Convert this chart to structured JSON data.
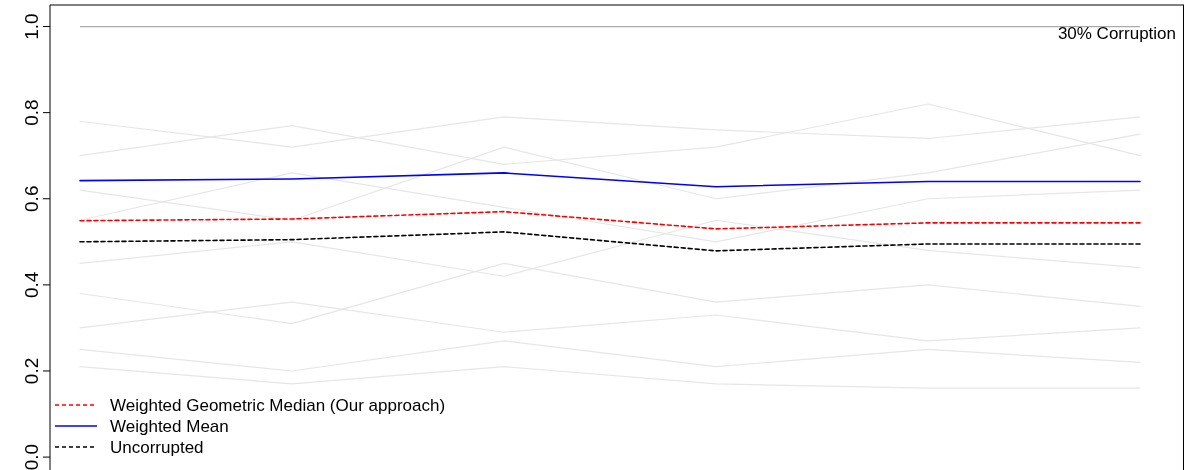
{
  "chart_data": {
    "type": "line",
    "categories": [
      null,
      null,
      null,
      null,
      null,
      null
    ],
    "ylim": [
      -0.03,
      1.05
    ],
    "yticks": [
      {
        "value": 0,
        "label": "0.0"
      },
      0.2,
      0.4,
      0.6,
      0.8,
      {
        "value": 1,
        "label": "1.0"
      }
    ],
    "tick_labels": "y",
    "grid": false,
    "legend": "bottom left",
    "annotations": [
      "30% Corruption"
    ],
    "ref_lines": [
      {
        "axis": "y",
        "value": 1,
        "color": "#aaaaaa"
      }
    ],
    "series": [
      {
        "color": "#e6e6e6",
        "values": [
          0.78,
          0.72,
          0.79,
          0.76,
          0.74,
          0.79
        ]
      },
      {
        "color": "#e6e6e6",
        "values": [
          0.7,
          0.77,
          0.68,
          0.72,
          0.82,
          0.7
        ]
      },
      {
        "color": "#e6e6e6",
        "values": [
          0.62,
          0.55,
          0.72,
          0.6,
          0.66,
          0.75
        ]
      },
      {
        "color": "#e6e6e6",
        "values": [
          0.55,
          0.66,
          0.58,
          0.5,
          0.6,
          0.62
        ]
      },
      {
        "color": "#e6e6e6",
        "values": [
          0.45,
          0.5,
          0.42,
          0.55,
          0.48,
          0.44
        ]
      },
      {
        "color": "#e6e6e6",
        "values": [
          0.38,
          0.31,
          0.45,
          0.36,
          0.4,
          0.35
        ]
      },
      {
        "color": "#e6e6e6",
        "values": [
          0.3,
          0.36,
          0.29,
          0.33,
          0.27,
          0.3
        ]
      },
      {
        "color": "#e6e6e6",
        "values": [
          0.25,
          0.2,
          0.27,
          0.21,
          0.25,
          0.22
        ]
      },
      {
        "color": "#e6e6e6",
        "values": [
          0.21,
          0.17,
          0.21,
          0.17,
          0.16,
          0.16
        ]
      },
      {
        "name": "Weighted Geometric Median (Our approach)",
        "color": "#ff0000",
        "line_style": "dashed",
        "values": [
          0.549,
          0.553,
          0.57,
          0.53,
          0.544,
          0.544
        ]
      },
      {
        "name": "Weighted Mean",
        "color": "#0000ff",
        "line_style": "solid",
        "values": [
          0.642,
          0.646,
          0.66,
          0.628,
          0.64,
          0.64
        ]
      },
      {
        "name": "Uncorrupted",
        "color": "#000000",
        "line_style": "dashed",
        "values": [
          0.5,
          0.505,
          0.523,
          0.479,
          0.495,
          0.495
        ]
      }
    ]
  }
}
